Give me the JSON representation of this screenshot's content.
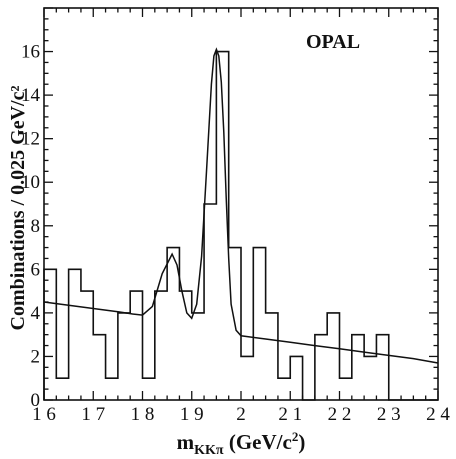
{
  "chart_data": {
    "type": "histogram",
    "annotation": "OPAL",
    "xlabel": {
      "main": "m",
      "sub": "KKπ",
      "unit": " (GeV/c",
      "sup": "2",
      "close": ")"
    },
    "ylabel": "Combinations / 0.025 GeV/c²",
    "x_tick_labels": [
      "1 6",
      "1 7",
      "1 8",
      "1 9",
      "2",
      "2 1",
      "2 2",
      "2 3",
      "2 4"
    ],
    "x_ticks": [
      1.6,
      1.7,
      1.8,
      1.9,
      2.0,
      2.1,
      2.2,
      2.3,
      2.4
    ],
    "y_tick_labels": [
      "0",
      "2",
      "4",
      "6",
      "8",
      "10",
      "12",
      "14",
      "16"
    ],
    "y_ticks": [
      0,
      2,
      4,
      6,
      8,
      10,
      12,
      14,
      16
    ],
    "xlim": [
      1.6,
      2.4
    ],
    "ylim": [
      0,
      18
    ],
    "bin_width": 0.025,
    "bin_edges_start": 1.6,
    "bin_counts": [
      6,
      1,
      6,
      5,
      3,
      1,
      4,
      5,
      1,
      5,
      7,
      5,
      4,
      9,
      16,
      7,
      2,
      7,
      4,
      1,
      2,
      0,
      3,
      4,
      1,
      3,
      2,
      3,
      0,
      0,
      0,
      0
    ],
    "fit_curve": {
      "x": [
        1.6,
        1.65,
        1.7,
        1.75,
        1.78,
        1.8,
        1.82,
        1.84,
        1.86,
        1.87,
        1.88,
        1.89,
        1.9,
        1.91,
        1.92,
        1.93,
        1.94,
        1.945,
        1.95,
        1.955,
        1.96,
        1.965,
        1.97,
        1.975,
        1.98,
        1.99,
        2.0,
        2.05,
        2.1,
        2.15,
        2.2,
        2.25,
        2.3,
        2.35,
        2.4
      ],
      "y": [
        4.5,
        4.35,
        4.2,
        4.05,
        3.95,
        3.9,
        4.3,
        5.8,
        6.7,
        6.2,
        5.0,
        4.0,
        3.75,
        4.4,
        6.6,
        10.5,
        14.5,
        15.8,
        16.1,
        15.8,
        14.6,
        12.3,
        9.3,
        6.5,
        4.4,
        3.2,
        2.95,
        2.8,
        2.65,
        2.5,
        2.35,
        2.2,
        2.05,
        1.9,
        1.7
      ]
    }
  }
}
